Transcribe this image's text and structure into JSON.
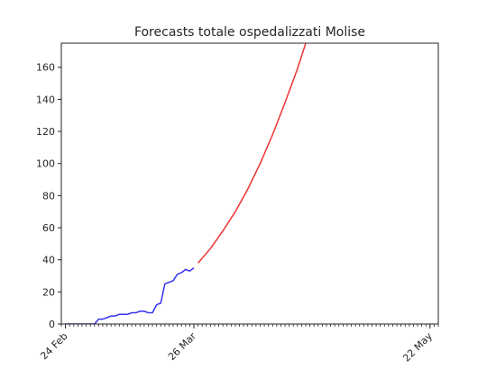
{
  "chart_data": {
    "type": "line",
    "title": "Forecasts totale ospedalizzati Molise",
    "xlabel": "",
    "ylabel": "",
    "xlim": [
      "2020-02-23",
      "2020-05-24"
    ],
    "ylim": [
      0,
      175
    ],
    "grid": false,
    "x_tick_labels": [
      {
        "date": "2020-02-24",
        "label": "24 Feb"
      },
      {
        "date": "2020-03-26",
        "label": "26 Mar"
      },
      {
        "date": "2020-05-22",
        "label": "22 May"
      }
    ],
    "y_ticks": [
      0,
      20,
      40,
      60,
      80,
      100,
      120,
      140,
      160
    ],
    "series": [
      {
        "color": "#3333ee",
        "points": [
          [
            "2020-02-24",
            0
          ],
          [
            "2020-02-25",
            0
          ],
          [
            "2020-02-26",
            0
          ],
          [
            "2020-02-27",
            0
          ],
          [
            "2020-02-28",
            0
          ],
          [
            "2020-02-29",
            0
          ],
          [
            "2020-03-01",
            0
          ],
          [
            "2020-03-02",
            0
          ],
          [
            "2020-03-03",
            3
          ],
          [
            "2020-03-04",
            3
          ],
          [
            "2020-03-05",
            4
          ],
          [
            "2020-03-06",
            5
          ],
          [
            "2020-03-07",
            5
          ],
          [
            "2020-03-08",
            6
          ],
          [
            "2020-03-09",
            6
          ],
          [
            "2020-03-10",
            6
          ],
          [
            "2020-03-11",
            7
          ],
          [
            "2020-03-12",
            7
          ],
          [
            "2020-03-13",
            8
          ],
          [
            "2020-03-14",
            8
          ],
          [
            "2020-03-15",
            7
          ],
          [
            "2020-03-16",
            7
          ],
          [
            "2020-03-17",
            12
          ],
          [
            "2020-03-18",
            13
          ],
          [
            "2020-03-19",
            25
          ],
          [
            "2020-03-20",
            26
          ],
          [
            "2020-03-21",
            27
          ],
          [
            "2020-03-22",
            31
          ],
          [
            "2020-03-23",
            32
          ],
          [
            "2020-03-24",
            34
          ],
          [
            "2020-03-25",
            33
          ],
          [
            "2020-03-26",
            35
          ]
        ]
      },
      {
        "color": "#ee3333",
        "points": [
          [
            "2020-03-27",
            38
          ],
          [
            "2020-03-30",
            47
          ],
          [
            "2020-04-02",
            58
          ],
          [
            "2020-04-05",
            70
          ],
          [
            "2020-04-08",
            84
          ],
          [
            "2020-04-11",
            100
          ],
          [
            "2020-04-14",
            118
          ],
          [
            "2020-04-17",
            138
          ],
          [
            "2020-04-20",
            159
          ],
          [
            "2020-04-22",
            175
          ]
        ]
      }
    ]
  }
}
